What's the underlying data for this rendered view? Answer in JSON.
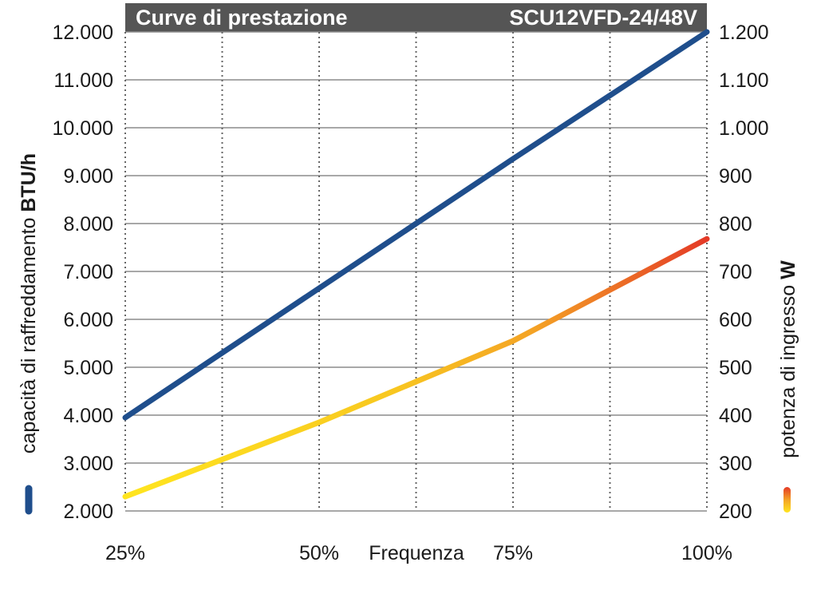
{
  "chart_data": {
    "type": "line",
    "title": "Curve di prestazione",
    "model": "SCU12VFD-24/48V",
    "xlabel": "Frequenza",
    "categories": [
      "25%",
      "50%",
      "75%",
      "100%"
    ],
    "x": [
      25,
      50,
      75,
      100
    ],
    "y_left": {
      "label_prefix": "capacità di raffreddamento ",
      "label_unit": "BTU/h",
      "ylim": [
        2000,
        12000
      ],
      "tick_labels": [
        "2.000",
        "3.000",
        "4.000",
        "5.000",
        "6.000",
        "7.000",
        "8.000",
        "9.000",
        "10.000",
        "11.000",
        "12.000"
      ]
    },
    "y_right": {
      "label_prefix": "potenza di ingresso ",
      "label_unit": "W",
      "ylim": [
        200,
        1200
      ],
      "tick_labels": [
        "200",
        "300",
        "400",
        "500",
        "600",
        "700",
        "800",
        "900",
        "1.000",
        "1.100",
        "1.200"
      ]
    },
    "series": [
      {
        "axis": "left",
        "color": "#1f4e8c",
        "x": [
          25,
          50,
          75,
          100
        ],
        "values": [
          3950,
          6650,
          9350,
          12000
        ]
      },
      {
        "axis": "right",
        "gradient": [
          "#ffe51f",
          "#f4a325",
          "#e43a27"
        ],
        "x": [
          25,
          50,
          75,
          100
        ],
        "values": [
          230,
          385,
          555,
          768
        ]
      }
    ],
    "grid": true,
    "legend": "rotated axis labels with colored line markers"
  }
}
